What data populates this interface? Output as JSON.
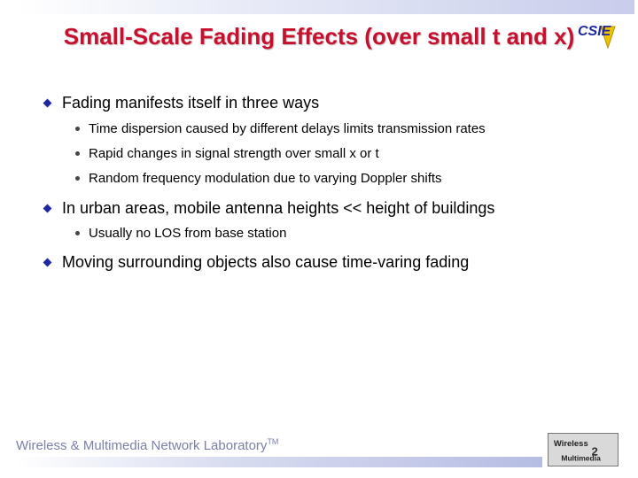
{
  "slide": {
    "title": "Small-Scale Fading Effects (over small t and x)",
    "bullets": [
      {
        "text": "Fading manifests itself in three ways",
        "sub": [
          "Time dispersion caused by different delays limits transmission rates",
          "Rapid changes in signal strength over small x or t",
          "Random frequency modulation due to varying Doppler shifts"
        ]
      },
      {
        "text": "In urban areas, mobile antenna heights << height of buildings",
        "sub": [
          "Usually no LOS from base station"
        ]
      },
      {
        "text": "Moving surrounding objects also cause time-varing fading",
        "sub": []
      }
    ]
  },
  "footer": {
    "lab_name": "Wireless & Multimedia Network Laboratory",
    "trademark": "TM"
  },
  "logos": {
    "cse_text": "CSIE",
    "wm_text_1": "Wireless",
    "wm_text_2": "Multimedia"
  },
  "colors": {
    "title": "#c8102e",
    "bullet_diamond": "#1f2aa0",
    "footer_text": "#7a7fa8"
  }
}
